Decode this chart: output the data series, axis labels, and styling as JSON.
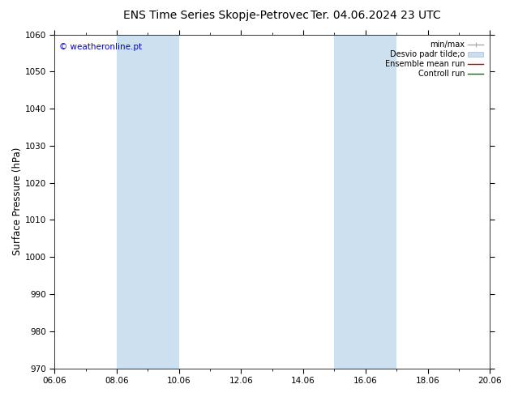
{
  "title": "ENS Time Series Skopje-Petrovec",
  "title2": "Ter. 04.06.2024 23 UTC",
  "ylabel": "Surface Pressure (hPa)",
  "ylim": [
    970,
    1060
  ],
  "yticks": [
    970,
    980,
    990,
    1000,
    1010,
    1020,
    1030,
    1040,
    1050,
    1060
  ],
  "xlim": [
    0,
    14
  ],
  "xtick_labels": [
    "06.06",
    "08.06",
    "10.06",
    "12.06",
    "14.06",
    "16.06",
    "18.06",
    "20.06"
  ],
  "xtick_positions": [
    0,
    2,
    4,
    6,
    8,
    10,
    12,
    14
  ],
  "shaded_bands": [
    {
      "xmin": 2,
      "xmax": 4,
      "color": "#cce0f0"
    },
    {
      "xmin": 9,
      "xmax": 11,
      "color": "#cce0f0"
    }
  ],
  "watermark": "© weatheronline.pt",
  "watermark_color": "#0000cc",
  "legend_items": [
    {
      "label": "min/max",
      "color": "#aaaaaa",
      "lw": 1.0
    },
    {
      "label": "Desvio padr tilde;o",
      "color": "#ccddee",
      "lw": 6
    },
    {
      "label": "Ensemble mean run",
      "color": "#cc0000",
      "lw": 1.0
    },
    {
      "label": "Controll run",
      "color": "#007700",
      "lw": 1.0
    }
  ],
  "bg_color": "#ffffff",
  "plot_bg_color": "#ffffff",
  "border_color": "#333333",
  "grid_color": "#dddddd",
  "title_fontsize": 10,
  "tick_fontsize": 7.5,
  "ylabel_fontsize": 8.5,
  "legend_fontsize": 7
}
